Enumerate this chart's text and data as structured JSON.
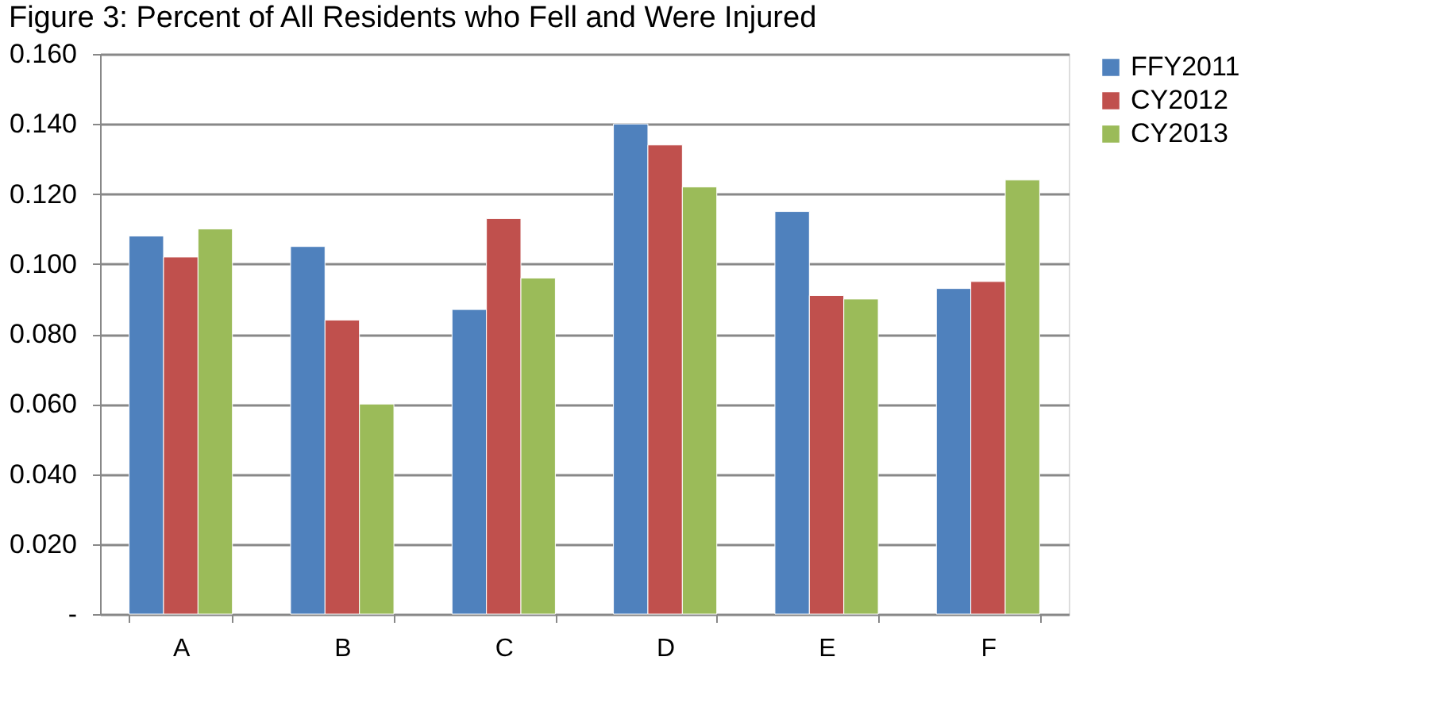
{
  "chart_data": {
    "type": "bar",
    "title": "Figure 3: Percent of All Residents who Fell and Were Injured",
    "categories": [
      "A",
      "B",
      "C",
      "D",
      "E",
      "F"
    ],
    "series": [
      {
        "name": "FFY2011",
        "color": "#4f81bd",
        "values": [
          0.108,
          0.105,
          0.087,
          0.14,
          0.115,
          0.093
        ]
      },
      {
        "name": "CY2012",
        "color": "#c0504d",
        "values": [
          0.102,
          0.084,
          0.113,
          0.134,
          0.091,
          0.095
        ]
      },
      {
        "name": "CY2013",
        "color": "#9bbb59",
        "values": [
          0.11,
          0.06,
          0.096,
          0.122,
          0.09,
          0.124
        ]
      }
    ],
    "ylim": [
      0,
      0.16
    ],
    "yticks": [
      {
        "value": 0,
        "label": "-"
      },
      {
        "value": 0.02,
        "label": "0.020"
      },
      {
        "value": 0.04,
        "label": "0.040"
      },
      {
        "value": 0.06,
        "label": "0.060"
      },
      {
        "value": 0.08,
        "label": "0.080"
      },
      {
        "value": 0.1,
        "label": "0.100"
      },
      {
        "value": 0.12,
        "label": "0.120"
      },
      {
        "value": 0.14,
        "label": "0.140"
      },
      {
        "value": 0.16,
        "label": "0.160"
      }
    ],
    "grid": "y",
    "legend": "right"
  }
}
